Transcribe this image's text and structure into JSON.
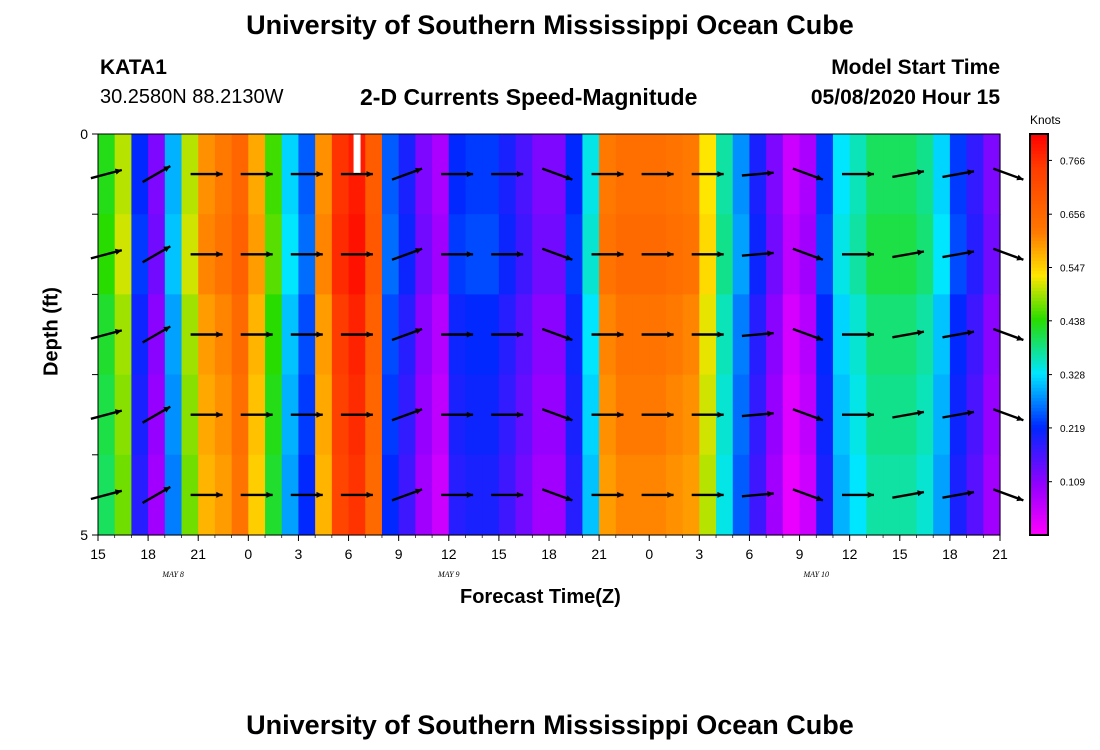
{
  "header": {
    "title": "University of Southern Mississippi Ocean Cube",
    "footer_title": "University of Southern Mississippi Ocean Cube",
    "station": "KATA1",
    "coords": "30.2580N 88.2130W",
    "model_start_label": "Model Start Time",
    "model_start_value": "05/08/2020 Hour 15"
  },
  "chart_data": {
    "type": "heatmap",
    "title": "2-D Currents Speed-Magnitude",
    "xlabel": "Forecast Time(Z)",
    "ylabel": "Depth (ft)",
    "ylim": [
      0,
      5
    ],
    "y_ticks": [
      "0",
      "5"
    ],
    "x_ticks": [
      "15",
      "18",
      "21",
      "0",
      "3",
      "6",
      "9",
      "12",
      "15",
      "18",
      "21",
      "0",
      "3",
      "6",
      "9",
      "12",
      "15",
      "18",
      "21"
    ],
    "x_tick_hours": [
      15,
      18,
      21,
      24,
      27,
      30,
      33,
      36,
      39,
      42,
      45,
      48,
      51,
      54,
      57,
      60,
      63,
      66,
      69
    ],
    "day_labels": [
      "MAY 8",
      "MAY 9",
      "MAY 10"
    ],
    "day_label_hours": [
      19.5,
      36,
      58
    ],
    "depth_levels_ft": [
      0.5,
      1.5,
      2.5,
      3.5,
      4.5
    ],
    "speed_knots_by_hour": [
      0.43,
      0.5,
      0.22,
      0.12,
      0.3,
      0.5,
      0.6,
      0.62,
      0.66,
      0.58,
      0.45,
      0.32,
      0.25,
      0.6,
      0.76,
      0.79,
      0.68,
      0.25,
      0.2,
      0.12,
      0.08,
      0.22,
      0.23,
      0.23,
      0.2,
      0.16,
      0.12,
      0.12,
      0.22,
      0.34,
      0.62,
      0.64,
      0.64,
      0.64,
      0.63,
      0.62,
      0.53,
      0.37,
      0.28,
      0.2,
      0.12,
      0.05,
      0.08,
      0.23,
      0.33,
      0.36,
      0.4,
      0.4,
      0.4,
      0.38,
      0.32,
      0.23,
      0.18,
      0.12
    ],
    "colorbar": {
      "units": "Knots",
      "min": 0.0,
      "max": 0.82,
      "tick_labels": [
        "0.766",
        "0.656",
        "0.547",
        "0.438",
        "0.328",
        "0.219",
        "0.109"
      ],
      "tick_values": [
        0.766,
        0.656,
        0.547,
        0.438,
        0.328,
        0.219,
        0.109
      ]
    },
    "vector_hours": [
      15.5,
      18.5,
      21.5,
      24.5,
      27.5,
      30.5,
      33.5,
      36.5,
      39.5,
      42.5,
      45.5,
      48.5,
      51.5,
      54.5,
      57.5,
      60.5,
      63.5,
      66.5,
      69.5
    ],
    "vector_directions_deg": [
      15,
      30,
      0,
      0,
      0,
      0,
      20,
      0,
      0,
      -20,
      0,
      0,
      0,
      5,
      -20,
      0,
      10,
      10,
      -20
    ],
    "colors": {
      "bar_white": "#ffffff",
      "arrow": "#000000"
    }
  }
}
